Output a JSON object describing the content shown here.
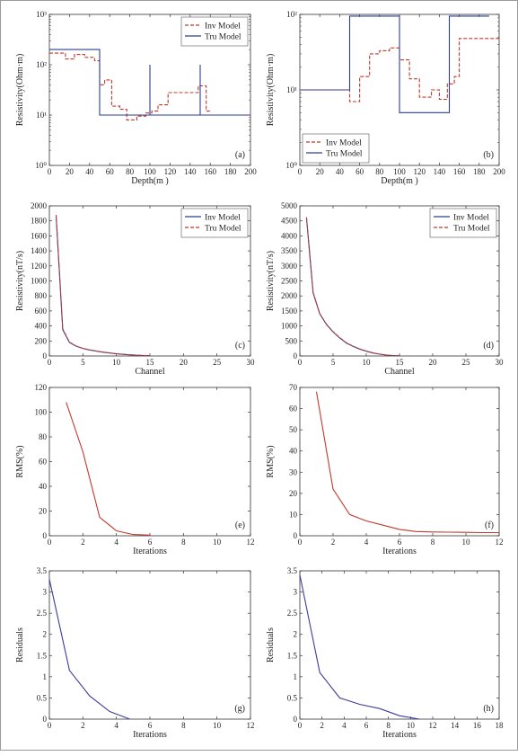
{
  "chart_data": [
    {
      "panel": "(a)",
      "type": "line",
      "xlabel": "Depth(m )",
      "ylabel": "Resistivity(Ohm·m)",
      "xlim": [
        0,
        200
      ],
      "ylim": [
        1,
        1000
      ],
      "log_y": true,
      "xticks": [
        0,
        20,
        40,
        60,
        80,
        100,
        120,
        140,
        160,
        180,
        200
      ],
      "yticks": [
        1,
        10,
        100,
        1000
      ],
      "ytick_labels": [
        "10⁰",
        "10¹",
        "10²",
        "10³"
      ],
      "legend_position": "top-right",
      "series": [
        {
          "name": "Inv Model",
          "color": "#c0392b",
          "dash": true,
          "x": [
            0,
            16,
            16,
            25,
            25,
            35,
            35,
            45,
            45,
            50,
            50,
            55,
            55,
            62,
            62,
            70,
            70,
            77,
            77,
            87,
            87,
            96,
            96,
            102,
            102,
            108,
            108,
            118,
            118,
            118,
            118,
            130,
            130,
            148,
            148,
            156,
            156,
            160
          ],
          "y": [
            170,
            170,
            130,
            130,
            160,
            160,
            140,
            140,
            120,
            120,
            40,
            40,
            50,
            50,
            15,
            15,
            13,
            13,
            8,
            8,
            9.5,
            9.5,
            11,
            11,
            12,
            12,
            16,
            16,
            20,
            20,
            28,
            28,
            28,
            28,
            38,
            38,
            12,
            12
          ]
        },
        {
          "name": "Tru Model",
          "color": "#2c3e8f",
          "dash": false,
          "x": [
            0,
            50,
            50,
            100,
            100,
            100,
            100,
            150,
            150,
            150,
            150,
            200
          ],
          "y": [
            200,
            200,
            10,
            10,
            100,
            10,
            10,
            10,
            100,
            10,
            10,
            10
          ]
        }
      ]
    },
    {
      "panel": "(b)",
      "type": "line",
      "xlabel": "Depth(m )",
      "ylabel": "Resistivity(Ohm·m)",
      "xlim": [
        0,
        200
      ],
      "ylim": [
        1,
        100
      ],
      "log_y": true,
      "xticks": [
        0,
        20,
        40,
        60,
        80,
        100,
        120,
        140,
        160,
        180,
        200
      ],
      "yticks": [
        1,
        10,
        100
      ],
      "ytick_labels": [
        "10⁰",
        "10¹",
        "10²"
      ],
      "legend_position": "bottom-left",
      "series": [
        {
          "name": "Inv Model",
          "color": "#c0392b",
          "dash": true,
          "x": [
            0,
            50,
            50,
            60,
            60,
            70,
            70,
            80,
            80,
            90,
            90,
            100,
            100,
            110,
            110,
            120,
            120,
            132,
            132,
            140,
            140,
            148,
            148,
            155,
            155,
            160,
            160,
            200
          ],
          "y": [
            10,
            10,
            7,
            7,
            15,
            15,
            30,
            30,
            33,
            33,
            36,
            36,
            25,
            25,
            14,
            14,
            8,
            8,
            10,
            10,
            7.5,
            7.5,
            12,
            12,
            15,
            15,
            48,
            48
          ]
        },
        {
          "name": "Tru Model",
          "color": "#2c3e8f",
          "dash": false,
          "x": [
            0,
            50,
            50,
            100,
            100,
            150,
            150,
            190
          ],
          "y": [
            10,
            10,
            95,
            95,
            5,
            5,
            95,
            95
          ]
        }
      ]
    },
    {
      "panel": "(c)",
      "type": "line",
      "xlabel": "Channel",
      "ylabel": "Resistivity(nT/s)",
      "xlim": [
        0,
        30
      ],
      "ylim": [
        0,
        2000
      ],
      "xticks": [
        0,
        5,
        10,
        15,
        20,
        25,
        30
      ],
      "yticks": [
        0,
        200,
        400,
        600,
        800,
        1000,
        1200,
        1400,
        1600,
        1800,
        2000
      ],
      "legend_position": "top-right",
      "series": [
        {
          "name": "Inv Model",
          "color": "#2c3e8f",
          "dash": false,
          "x": [
            1,
            2,
            3,
            4,
            5,
            6,
            7,
            8,
            9,
            10,
            11,
            12,
            13,
            14,
            15
          ],
          "y": [
            1870,
            350,
            180,
            130,
            100,
            80,
            65,
            50,
            40,
            30,
            22,
            15,
            10,
            6,
            3
          ]
        },
        {
          "name": "Tru Model",
          "color": "#c0392b",
          "dash": true,
          "x": [
            1,
            2,
            3,
            4,
            5,
            6,
            7,
            8,
            9,
            10,
            11,
            12,
            13,
            14,
            15
          ],
          "y": [
            1880,
            360,
            185,
            132,
            102,
            82,
            66,
            51,
            41,
            31,
            23,
            16,
            11,
            7,
            4
          ]
        }
      ]
    },
    {
      "panel": "(d)",
      "type": "line",
      "xlabel": "Channel",
      "ylabel": "Resistivity(nT/s)",
      "xlim": [
        0,
        30
      ],
      "ylim": [
        0,
        5000
      ],
      "xticks": [
        0,
        5,
        10,
        15,
        20,
        25,
        30
      ],
      "yticks": [
        0,
        500,
        1000,
        1500,
        2000,
        2500,
        3000,
        3500,
        4000,
        4500,
        5000
      ],
      "legend_position": "top-right",
      "series": [
        {
          "name": "Inv Model",
          "color": "#2c3e8f",
          "dash": false,
          "x": [
            1,
            2,
            3,
            4,
            5,
            6,
            7,
            8,
            9,
            10,
            11,
            12,
            13,
            14,
            15
          ],
          "y": [
            4600,
            2100,
            1400,
            1050,
            800,
            600,
            430,
            320,
            230,
            160,
            100,
            60,
            30,
            12,
            5
          ]
        },
        {
          "name": "Tru Model",
          "color": "#c0392b",
          "dash": true,
          "x": [
            1,
            2,
            3,
            4,
            5,
            6,
            7,
            8,
            9,
            10,
            11,
            12,
            13,
            14,
            15
          ],
          "y": [
            4620,
            2120,
            1410,
            1060,
            810,
            610,
            440,
            325,
            235,
            165,
            105,
            62,
            32,
            14,
            6
          ]
        }
      ]
    },
    {
      "panel": "(e)",
      "type": "line",
      "xlabel": "Iterations",
      "ylabel": "RMS(%)",
      "xlim": [
        0,
        12
      ],
      "ylim": [
        0,
        120
      ],
      "xticks": [
        0,
        2,
        4,
        6,
        8,
        10,
        12
      ],
      "yticks": [
        0,
        20,
        40,
        60,
        80,
        100,
        120
      ],
      "series": [
        {
          "color": "#c0392b",
          "dash": false,
          "x": [
            1,
            2,
            3,
            4,
            5,
            6
          ],
          "y": [
            108,
            68,
            15,
            4,
            1,
            0.5
          ]
        }
      ]
    },
    {
      "panel": "(f)",
      "type": "line",
      "xlabel": "Iterations",
      "ylabel": "RMS(%)",
      "xlim": [
        0,
        12
      ],
      "ylim": [
        0,
        70
      ],
      "xticks": [
        0,
        2,
        4,
        6,
        8,
        10,
        12
      ],
      "yticks": [
        0,
        10,
        20,
        30,
        40,
        50,
        60,
        70
      ],
      "series": [
        {
          "color": "#c0392b",
          "dash": false,
          "x": [
            1,
            2,
            3,
            4,
            5,
            6,
            7,
            8,
            9,
            10,
            11,
            12
          ],
          "y": [
            68,
            22,
            10,
            7,
            5,
            3,
            2,
            1.8,
            1.7,
            1.6,
            1.5,
            1.5
          ]
        }
      ]
    },
    {
      "panel": "(g)",
      "type": "line",
      "xlabel": "Iterations",
      "ylabel": "Residuals",
      "xlim": [
        0,
        12
      ],
      "ylim": [
        0,
        3.5
      ],
      "xticks": [
        0,
        2,
        4,
        6,
        8,
        10,
        12
      ],
      "yticks": [
        0,
        0.5,
        1,
        1.5,
        2,
        2.5,
        3,
        3.5
      ],
      "series": [
        {
          "color": "#3b3b9a",
          "dash": false,
          "x": [
            0,
            1.2,
            2.4,
            3.6,
            4.8
          ],
          "y": [
            3.3,
            1.15,
            0.55,
            0.18,
            0.0
          ]
        }
      ]
    },
    {
      "panel": "(h)",
      "type": "line",
      "xlabel": "Iterations",
      "ylabel": "Residuals",
      "xlim": [
        0,
        18
      ],
      "ylim": [
        0,
        3.5
      ],
      "xticks": [
        0,
        2,
        4,
        6,
        8,
        10,
        12,
        14,
        16,
        18
      ],
      "yticks": [
        0,
        0.5,
        1,
        1.5,
        2,
        2.5,
        3,
        3.5
      ],
      "series": [
        {
          "color": "#3b3b9a",
          "dash": false,
          "x": [
            0,
            1.8,
            3.6,
            5.4,
            7.2,
            9,
            10.8
          ],
          "y": [
            3.4,
            1.1,
            0.5,
            0.35,
            0.25,
            0.08,
            0.0
          ]
        }
      ]
    }
  ]
}
